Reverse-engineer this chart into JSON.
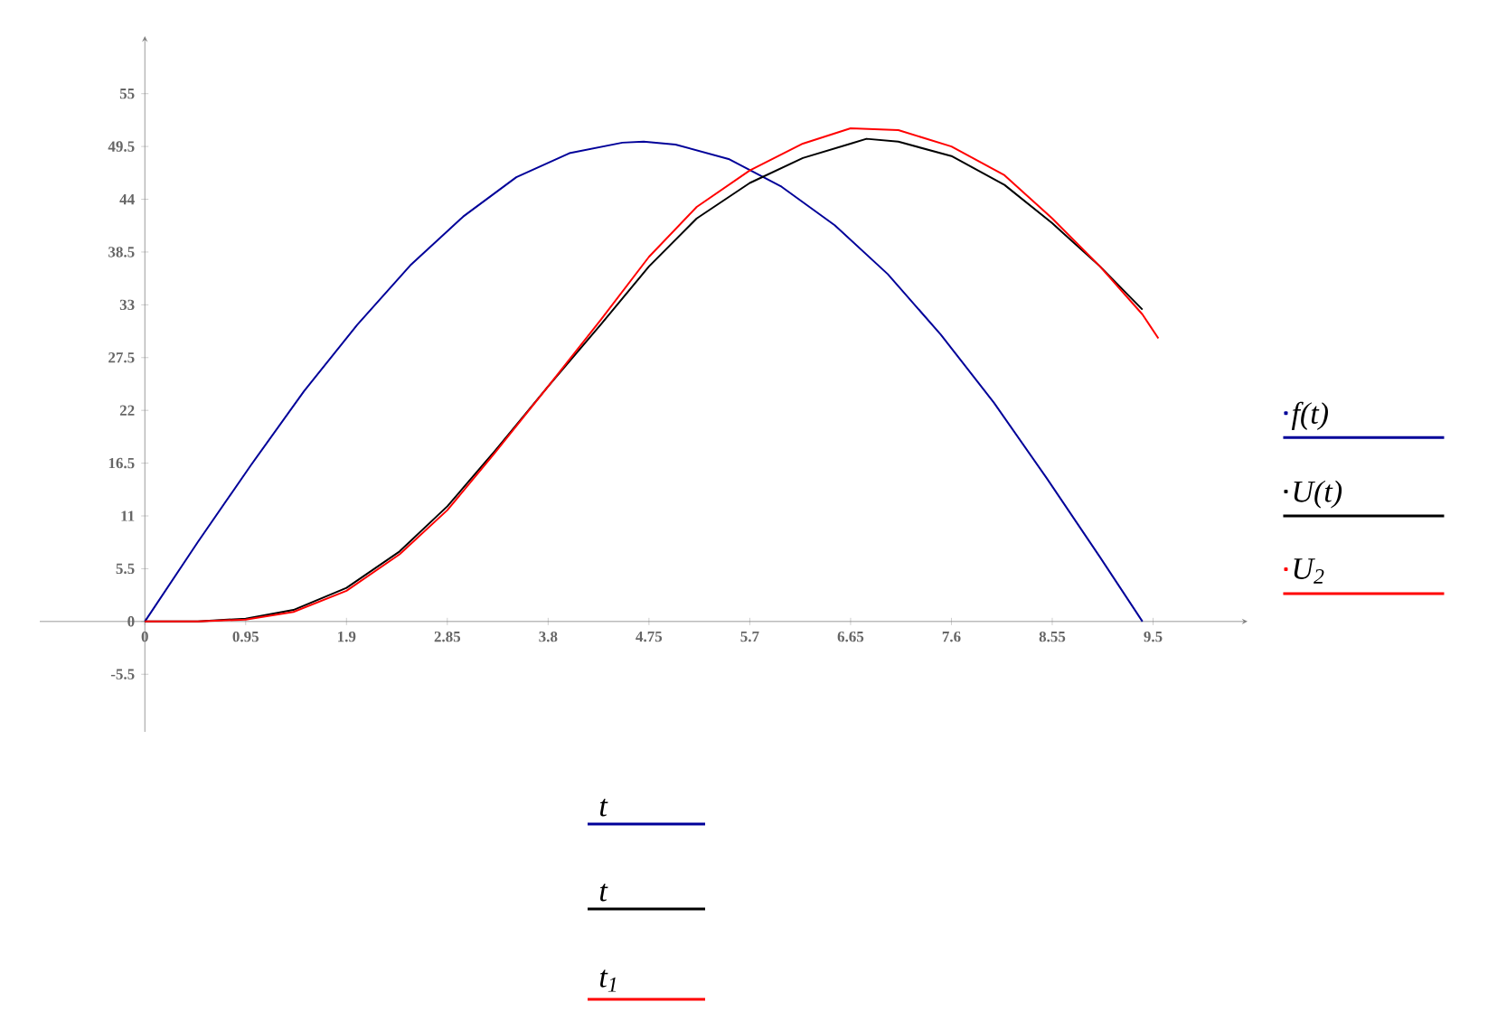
{
  "chart_data": {
    "type": "line",
    "xlim": [
      -0.99,
      10.39
    ],
    "ylim": [
      -11.5,
      61
    ],
    "xticks": [
      0,
      0.95,
      1.9,
      2.85,
      3.8,
      4.75,
      5.7,
      6.65,
      7.6,
      8.55,
      9.5
    ],
    "yticks": [
      -5.5,
      0,
      5.5,
      11,
      16.5,
      22,
      27.5,
      33,
      38.5,
      44,
      49.5,
      55
    ],
    "series": [
      {
        "name": "f(t)",
        "color": "#000099",
        "x": [
          0,
          0.5,
          1,
          1.5,
          2,
          2.5,
          3,
          3.5,
          4,
          4.5,
          4.7,
          5,
          5.5,
          6,
          6.5,
          7,
          7.5,
          8,
          8.5,
          9,
          9.4
        ],
        "values": [
          0,
          8.3,
          16.3,
          24,
          30.9,
          37.1,
          42.2,
          46.3,
          48.8,
          49.9,
          50,
          49.7,
          48.2,
          45.3,
          41.3,
          36.2,
          29.9,
          22.8,
          14.9,
          6.7,
          0
        ]
      },
      {
        "name": "U(t)",
        "color": "#000000",
        "x": [
          0,
          0.5,
          0.95,
          1.4,
          1.9,
          2.4,
          2.85,
          3.3,
          3.8,
          4.3,
          4.75,
          5.2,
          5.7,
          6.2,
          6.65,
          6.8,
          7.1,
          7.6,
          8.1,
          8.55,
          9,
          9.4
        ],
        "values": [
          0,
          0,
          0.3,
          1.2,
          3.5,
          7.3,
          12,
          17.8,
          24.5,
          31,
          37,
          42,
          45.7,
          48.3,
          49.8,
          50.3,
          50,
          48.5,
          45.5,
          41.5,
          37,
          32.5
        ]
      },
      {
        "name": "U$_{2}$",
        "color": "#ff0000",
        "x": [
          0,
          0.5,
          0.95,
          1.4,
          1.9,
          2.4,
          2.85,
          3.3,
          3.8,
          4.3,
          4.75,
          5.2,
          5.7,
          6.2,
          6.65,
          7.1,
          7.6,
          8.1,
          8.55,
          9,
          9.4,
          9.55
        ],
        "values": [
          0,
          0,
          0.2,
          1,
          3.2,
          7,
          11.6,
          17.6,
          24.5,
          31.5,
          38,
          43.2,
          47,
          49.8,
          51.4,
          51.2,
          49.5,
          46.5,
          42,
          37,
          32,
          29.5
        ]
      }
    ],
    "annotations": [
      "t",
      "t",
      "t$_{1}$"
    ],
    "legend": "right",
    "grid": false,
    "marker": "none",
    "line_style": "solid"
  }
}
